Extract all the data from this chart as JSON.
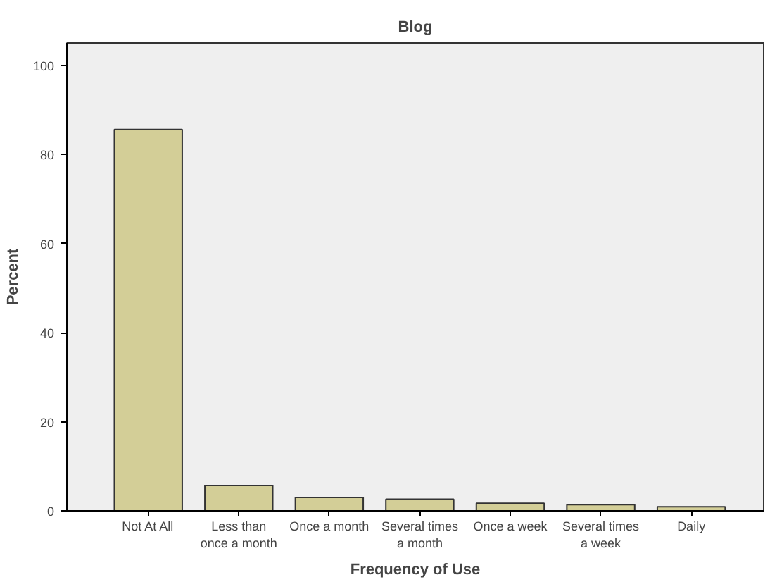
{
  "chart_data": {
    "type": "bar",
    "title": "Blog",
    "xlabel": "Frequency of Use",
    "ylabel": "Percent",
    "categories": [
      "Not At All",
      "Less than\nonce a month",
      "Once a month",
      "Several times\na month",
      "Once a week",
      "Several times\na week",
      "Daily"
    ],
    "values": [
      85.6,
      5.7,
      3.0,
      2.6,
      1.7,
      1.4,
      0.9
    ],
    "color": "#d3ce97",
    "ylim": [
      0,
      105
    ],
    "yticks": [
      0,
      20,
      40,
      60,
      80,
      100
    ],
    "grid": false
  }
}
